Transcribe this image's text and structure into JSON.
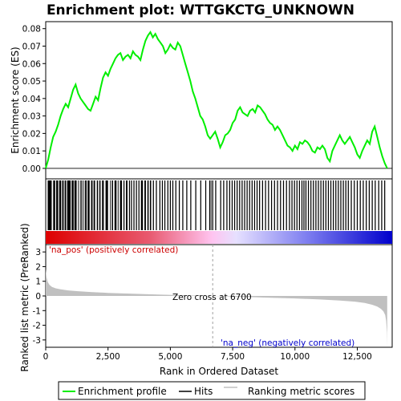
{
  "chart_data": {
    "type": "line",
    "title": "Enrichment plot: WTTGKCTG_UNKNOWN",
    "xlabel": "Rank in Ordered Dataset",
    "ylabel_top": "Enrichment score (ES)",
    "ylabel_bottom": "Ranked list metric (PreRanked)",
    "xlim": [
      0,
      13900
    ],
    "ylim_es": [
      -0.006,
      0.084
    ],
    "ylim_metric": [
      -3.5,
      3.5
    ],
    "x_ticks": [
      0,
      2500,
      5000,
      7500,
      10000,
      12500
    ],
    "x_tick_labels": [
      "0",
      "2,500",
      "5,000",
      "7,500",
      "10,000",
      "12,500"
    ],
    "es_ticks": [
      0.0,
      0.01,
      0.02,
      0.03,
      0.04,
      0.05,
      0.06,
      0.07,
      0.08
    ],
    "es_tick_labels": [
      "0.00",
      "0.01",
      "0.02",
      "0.03",
      "0.04",
      "0.05",
      "0.06",
      "0.07",
      "0.08"
    ],
    "metric_ticks": [
      3,
      2,
      1,
      0,
      -1,
      -2,
      -3
    ],
    "metric_tick_labels": [
      "3",
      "2",
      "1",
      "0",
      "-1",
      "-2",
      "-3"
    ],
    "annotations": {
      "pos_label": "'na_pos' (positively correlated)",
      "neg_label": "'na_neg' (negatively correlated)",
      "zero_cross": "Zero cross at 6700"
    },
    "zero_cross_rank": 6700,
    "colors": {
      "es_line": "#00ee00",
      "hits": "#000000",
      "metric_fill": "#c0c0c0",
      "pos_text": "#cc0000",
      "neg_text": "#0000cc",
      "zero_line": "#a0a0a0"
    },
    "es_profile": {
      "x": [
        0,
        100,
        200,
        300,
        400,
        500,
        600,
        700,
        800,
        900,
        1000,
        1100,
        1200,
        1300,
        1400,
        1500,
        1600,
        1700,
        1800,
        1900,
        2000,
        2100,
        2200,
        2300,
        2400,
        2500,
        2600,
        2700,
        2800,
        2900,
        3000,
        3100,
        3200,
        3300,
        3400,
        3500,
        3600,
        3700,
        3800,
        3900,
        4000,
        4100,
        4200,
        4300,
        4400,
        4500,
        4600,
        4700,
        4800,
        4900,
        5000,
        5100,
        5200,
        5300,
        5400,
        5500,
        5600,
        5700,
        5800,
        5900,
        6000,
        6100,
        6200,
        6300,
        6400,
        6500,
        6600,
        6700,
        6800,
        6900,
        7000,
        7100,
        7200,
        7300,
        7400,
        7500,
        7600,
        7700,
        7800,
        7900,
        8000,
        8100,
        8200,
        8300,
        8400,
        8500,
        8600,
        8700,
        8800,
        8900,
        9000,
        9100,
        9200,
        9300,
        9400,
        9500,
        9600,
        9700,
        9800,
        9900,
        10000,
        10100,
        10200,
        10300,
        10400,
        10500,
        10600,
        10700,
        10800,
        10900,
        11000,
        11100,
        11200,
        11300,
        11400,
        11500,
        11600,
        11700,
        11800,
        11900,
        12000,
        12100,
        12200,
        12300,
        12400,
        12500,
        12600,
        12700,
        12800,
        12900,
        13000,
        13100,
        13200,
        13300,
        13400,
        13500,
        13600,
        13700
      ],
      "y": [
        0.0,
        0.005,
        0.012,
        0.018,
        0.021,
        0.025,
        0.03,
        0.034,
        0.037,
        0.035,
        0.04,
        0.045,
        0.048,
        0.043,
        0.04,
        0.038,
        0.036,
        0.034,
        0.033,
        0.037,
        0.041,
        0.039,
        0.046,
        0.052,
        0.055,
        0.053,
        0.057,
        0.06,
        0.063,
        0.065,
        0.066,
        0.062,
        0.064,
        0.065,
        0.063,
        0.067,
        0.065,
        0.064,
        0.062,
        0.068,
        0.073,
        0.076,
        0.078,
        0.075,
        0.077,
        0.074,
        0.072,
        0.07,
        0.066,
        0.068,
        0.071,
        0.069,
        0.068,
        0.072,
        0.07,
        0.065,
        0.06,
        0.055,
        0.05,
        0.044,
        0.04,
        0.035,
        0.03,
        0.028,
        0.024,
        0.019,
        0.017,
        0.019,
        0.021,
        0.017,
        0.012,
        0.015,
        0.019,
        0.02,
        0.022,
        0.026,
        0.028,
        0.033,
        0.035,
        0.032,
        0.031,
        0.03,
        0.033,
        0.034,
        0.032,
        0.036,
        0.035,
        0.033,
        0.031,
        0.028,
        0.026,
        0.025,
        0.022,
        0.024,
        0.022,
        0.019,
        0.016,
        0.013,
        0.012,
        0.01,
        0.013,
        0.011,
        0.015,
        0.014,
        0.016,
        0.015,
        0.013,
        0.01,
        0.009,
        0.012,
        0.011,
        0.013,
        0.011,
        0.006,
        0.004,
        0.01,
        0.013,
        0.016,
        0.019,
        0.016,
        0.014,
        0.016,
        0.018,
        0.015,
        0.012,
        0.008,
        0.006,
        0.01,
        0.013,
        0.016,
        0.014,
        0.021,
        0.024,
        0.018,
        0.012,
        0.007,
        0.003,
        0.0
      ]
    },
    "hit_segments": [
      [
        80,
        240
      ],
      [
        300,
        380
      ],
      [
        420,
        500
      ],
      [
        540,
        620
      ],
      [
        660,
        720
      ],
      [
        760,
        820
      ],
      [
        860,
        1000
      ],
      [
        1040,
        1120
      ],
      [
        1150,
        1240
      ],
      [
        1300,
        1330
      ],
      [
        1380,
        1400
      ],
      [
        1430,
        1470
      ],
      [
        1520,
        1540
      ],
      [
        1580,
        1640
      ],
      [
        1680,
        1760
      ],
      [
        1820,
        1880
      ],
      [
        1920,
        1980
      ],
      [
        2050,
        2100
      ],
      [
        2150,
        2200
      ],
      [
        2260,
        2330
      ],
      [
        2400,
        2500
      ],
      [
        2580,
        2600
      ],
      [
        2650,
        2700
      ],
      [
        2760,
        2840
      ],
      [
        2890,
        2920
      ],
      [
        2980,
        3060
      ],
      [
        3120,
        3160
      ],
      [
        3220,
        3280
      ],
      [
        3340,
        3380
      ],
      [
        3420,
        3460
      ],
      [
        3520,
        3560
      ],
      [
        3620,
        3660
      ],
      [
        3720,
        3760
      ],
      [
        3820,
        3900
      ],
      [
        3960,
        4020
      ],
      [
        4080,
        4130
      ],
      [
        4180,
        4230
      ],
      [
        4300,
        4340
      ],
      [
        4420,
        4460
      ],
      [
        4560,
        4600
      ],
      [
        4660,
        4700
      ],
      [
        4760,
        4800
      ],
      [
        4880,
        4920
      ],
      [
        4980,
        5020
      ],
      [
        5080,
        5120
      ],
      [
        5200,
        5240
      ],
      [
        5340,
        5380
      ],
      [
        5480,
        5520
      ],
      [
        5640,
        5680
      ],
      [
        5800,
        5840
      ],
      [
        6000,
        6040
      ],
      [
        6200,
        6240
      ],
      [
        6400,
        6440
      ],
      [
        6560,
        6600
      ],
      [
        6620,
        6640
      ],
      [
        6680,
        6720
      ],
      [
        6800,
        6840
      ],
      [
        7000,
        7040
      ],
      [
        7120,
        7160
      ],
      [
        7250,
        7290
      ],
      [
        7360,
        7400
      ],
      [
        7460,
        7500
      ],
      [
        7560,
        7600
      ],
      [
        7660,
        7700
      ],
      [
        7760,
        7800
      ],
      [
        7860,
        7900
      ],
      [
        7960,
        8000
      ],
      [
        8060,
        8100
      ],
      [
        8160,
        8200
      ],
      [
        8260,
        8300
      ],
      [
        8360,
        8400
      ],
      [
        8460,
        8500
      ],
      [
        8560,
        8600
      ],
      [
        8680,
        8720
      ],
      [
        8800,
        8840
      ],
      [
        8920,
        8960
      ],
      [
        9040,
        9080
      ],
      [
        9160,
        9200
      ],
      [
        9280,
        9320
      ],
      [
        9400,
        9440
      ],
      [
        9520,
        9560
      ],
      [
        9640,
        9680
      ],
      [
        9760,
        9800
      ],
      [
        9860,
        9900
      ],
      [
        9960,
        10000
      ],
      [
        10060,
        10100
      ],
      [
        10160,
        10200
      ],
      [
        10260,
        10300
      ],
      [
        10340,
        10380
      ],
      [
        10420,
        10460
      ],
      [
        10520,
        10560
      ],
      [
        10620,
        10660
      ],
      [
        10720,
        10760
      ],
      [
        10820,
        10860
      ],
      [
        10920,
        10960
      ],
      [
        11020,
        11060
      ],
      [
        11120,
        11160
      ],
      [
        11220,
        11260
      ],
      [
        11320,
        11360
      ],
      [
        11420,
        11460
      ],
      [
        11520,
        11560
      ],
      [
        11620,
        11660
      ],
      [
        11720,
        11760
      ],
      [
        11820,
        11860
      ],
      [
        11920,
        11960
      ],
      [
        12020,
        12060
      ],
      [
        12120,
        12160
      ],
      [
        12240,
        12280
      ],
      [
        12360,
        12400
      ],
      [
        12480,
        12520
      ],
      [
        12600,
        12640
      ],
      [
        12720,
        12760
      ],
      [
        12840,
        12880
      ],
      [
        12960,
        13000
      ],
      [
        13080,
        13120
      ],
      [
        13200,
        13240
      ],
      [
        13340,
        13380
      ],
      [
        13460,
        13500
      ],
      [
        13580,
        13620
      ]
    ],
    "metric_curve": {
      "x": [
        0,
        30,
        80,
        150,
        250,
        400,
        600,
        900,
        1300,
        1800,
        2500,
        3500,
        4500,
        5500,
        6200,
        6700,
        7200,
        8000,
        9000,
        10000,
        11000,
        11800,
        12400,
        12800,
        13100,
        13300,
        13450,
        13550,
        13620,
        13660,
        13690,
        13700
      ],
      "y": [
        1.85,
        1.3,
        0.95,
        0.75,
        0.62,
        0.52,
        0.45,
        0.38,
        0.32,
        0.27,
        0.21,
        0.15,
        0.1,
        0.05,
        0.02,
        0.0,
        -0.03,
        -0.07,
        -0.12,
        -0.17,
        -0.24,
        -0.31,
        -0.39,
        -0.48,
        -0.6,
        -0.72,
        -0.88,
        -1.05,
        -1.3,
        -1.7,
        -2.5,
        -3.45
      ]
    }
  },
  "legend": {
    "items": [
      {
        "label": "Enrichment profile",
        "color": "#00ee00"
      },
      {
        "label": "Hits",
        "color": "#000000"
      },
      {
        "label": "Ranking metric scores",
        "color": "#c0c0c0"
      }
    ]
  }
}
